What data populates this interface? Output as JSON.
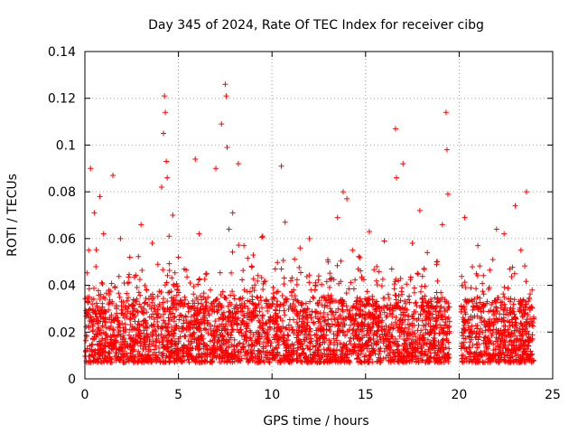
{
  "chart_data": {
    "type": "scatter",
    "title": "Day 345 of 2024, Rate Of TEC Index for receiver cibg",
    "xlabel": "GPS time / hours",
    "ylabel": "ROTI / TECUs",
    "xlim": [
      0,
      25
    ],
    "ylim": [
      0,
      0.14
    ],
    "xticks": [
      0,
      5,
      10,
      15,
      20,
      25
    ],
    "yticks": [
      0,
      0.02,
      0.04,
      0.06,
      0.08,
      0.1,
      0.12,
      0.14
    ],
    "xtick_labels": [
      "0",
      "5",
      "10",
      "15",
      "20",
      "25"
    ],
    "ytick_labels": [
      "0",
      "0.02",
      "0.04",
      "0.06",
      "0.08",
      "0.1",
      "0.12",
      "0.14"
    ],
    "grid": true,
    "marker": "+",
    "series": [
      {
        "name": "ROTI",
        "color": "#ff0000",
        "data_gap_hours": [
          19.5,
          20.1
        ],
        "x": [
          0.1,
          0.2,
          0.3,
          0.4,
          0.5,
          0.7,
          0.8,
          1.0,
          1.3,
          1.5,
          1.7,
          1.9,
          2.1,
          2.4,
          2.7,
          3.0,
          3.3,
          3.6,
          3.9,
          4.1,
          4.2,
          4.25,
          4.3,
          4.35,
          4.4,
          4.5,
          4.7,
          5.0,
          5.5,
          5.9,
          6.1,
          6.5,
          7.0,
          7.3,
          7.5,
          7.55,
          7.6,
          7.7,
          7.9,
          8.2,
          8.5,
          9.0,
          9.5,
          10.0,
          10.5,
          10.7,
          11.0,
          11.5,
          12.0,
          12.5,
          13.0,
          13.5,
          13.8,
          14.0,
          14.3,
          14.8,
          15.2,
          15.6,
          16.0,
          16.4,
          16.6,
          16.65,
          17.0,
          17.5,
          17.9,
          18.3,
          18.8,
          19.1,
          19.3,
          19.35,
          19.4,
          20.3,
          20.5,
          21.0,
          21.5,
          21.8,
          22.0,
          22.4,
          22.7,
          23.0,
          23.3,
          23.6,
          23.9
        ],
        "y": [
          0.028,
          0.055,
          0.09,
          0.032,
          0.071,
          0.025,
          0.078,
          0.062,
          0.036,
          0.087,
          0.028,
          0.06,
          0.041,
          0.052,
          0.027,
          0.066,
          0.038,
          0.058,
          0.049,
          0.082,
          0.105,
          0.121,
          0.114,
          0.093,
          0.086,
          0.061,
          0.07,
          0.052,
          0.031,
          0.094,
          0.062,
          0.045,
          0.09,
          0.109,
          0.126,
          0.121,
          0.099,
          0.064,
          0.071,
          0.092,
          0.057,
          0.053,
          0.061,
          0.034,
          0.091,
          0.067,
          0.042,
          0.056,
          0.06,
          0.044,
          0.05,
          0.069,
          0.08,
          0.077,
          0.055,
          0.043,
          0.063,
          0.048,
          0.059,
          0.047,
          0.107,
          0.086,
          0.092,
          0.058,
          0.072,
          0.054,
          0.05,
          0.066,
          0.114,
          0.098,
          0.079,
          0.069,
          0.022,
          0.057,
          0.033,
          0.051,
          0.064,
          0.062,
          0.047,
          0.074,
          0.055,
          0.08,
          0.038
        ]
      }
    ]
  }
}
